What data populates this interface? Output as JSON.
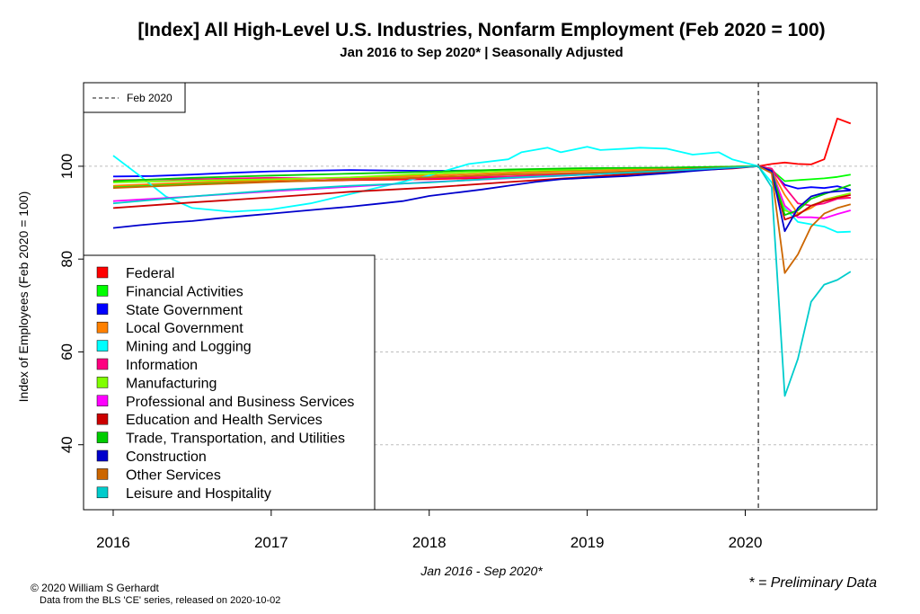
{
  "chart_data": {
    "type": "line",
    "title": "[Index] All High-Level U.S. Industries, Nonfarm Employment (Feb 2020 = 100)",
    "subtitle": "Jan 2016 to Sep 2020*  |  Seasonally Adjusted",
    "xlabel": "Jan 2016 - Sep 2020*",
    "ylabel": "Index of Employees (Feb 2020 = 100)",
    "x_ticks": [
      "2016",
      "2017",
      "2018",
      "2019",
      "2020"
    ],
    "y_ticks": [
      "40",
      "60",
      "80",
      "100"
    ],
    "xlim": [
      2015.8125,
      2020.833
    ],
    "ylim": [
      26,
      118
    ],
    "grid": "horizontal dashed at y ticks",
    "reference_line": {
      "x": 2020.083,
      "label": "Feb 2020"
    },
    "reference_legend_position": "top-left",
    "legend_position": "bottom-left",
    "preliminary_note": "* = Preliminary Data",
    "copyright": "© 2020 William S Gerhardt",
    "source_note": "Data from the BLS 'CE' series, released on 2020-10-02",
    "series": [
      {
        "name": "Federal",
        "color": "#ff0000",
        "points": [
          [
            2016.0,
            95.6
          ],
          [
            2016.5,
            96.2
          ],
          [
            2017.0,
            96.7
          ],
          [
            2017.5,
            97.0
          ],
          [
            2018.0,
            97.2
          ],
          [
            2018.5,
            97.6
          ],
          [
            2019.0,
            98.2
          ],
          [
            2019.5,
            98.9
          ],
          [
            2019.917,
            99.5
          ],
          [
            2020.083,
            100
          ],
          [
            2020.167,
            100.5
          ],
          [
            2020.25,
            100.8
          ],
          [
            2020.333,
            100.5
          ],
          [
            2020.417,
            100.4
          ],
          [
            2020.5,
            101.5
          ],
          [
            2020.583,
            110.3
          ],
          [
            2020.667,
            109.2
          ]
        ]
      },
      {
        "name": "Financial Activities",
        "color": "#00ff00",
        "points": [
          [
            2016.0,
            95.5
          ],
          [
            2016.5,
            96.3
          ],
          [
            2017.0,
            97.0
          ],
          [
            2017.5,
            97.5
          ],
          [
            2018.0,
            98.0
          ],
          [
            2018.5,
            98.6
          ],
          [
            2019.0,
            99.2
          ],
          [
            2019.5,
            99.6
          ],
          [
            2020.083,
            100
          ],
          [
            2020.167,
            99.2
          ],
          [
            2020.25,
            96.8
          ],
          [
            2020.333,
            97.0
          ],
          [
            2020.417,
            97.2
          ],
          [
            2020.5,
            97.4
          ],
          [
            2020.583,
            97.7
          ],
          [
            2020.667,
            98.2
          ]
        ]
      },
      {
        "name": "State Government",
        "color": "#0000ff",
        "points": [
          [
            2016.0,
            97.8
          ],
          [
            2016.25,
            97.9
          ],
          [
            2016.5,
            98.2
          ],
          [
            2016.75,
            98.6
          ],
          [
            2017.0,
            98.9
          ],
          [
            2017.5,
            99.2
          ],
          [
            2018.0,
            99.0
          ],
          [
            2018.5,
            99.2
          ],
          [
            2019.0,
            99.4
          ],
          [
            2019.5,
            99.6
          ],
          [
            2020.083,
            100
          ],
          [
            2020.167,
            99.0
          ],
          [
            2020.25,
            96.0
          ],
          [
            2020.333,
            95.2
          ],
          [
            2020.417,
            95.5
          ],
          [
            2020.5,
            95.3
          ],
          [
            2020.583,
            95.7
          ],
          [
            2020.667,
            94.9
          ]
        ]
      },
      {
        "name": "Local Government",
        "color": "#ff8000",
        "points": [
          [
            2016.0,
            95.8
          ],
          [
            2016.5,
            96.5
          ],
          [
            2017.0,
            97.0
          ],
          [
            2017.5,
            97.5
          ],
          [
            2018.0,
            98.0
          ],
          [
            2018.5,
            98.6
          ],
          [
            2019.0,
            99.0
          ],
          [
            2019.5,
            99.5
          ],
          [
            2020.083,
            100
          ],
          [
            2020.167,
            99.0
          ],
          [
            2020.25,
            93.8
          ],
          [
            2020.333,
            89.8
          ],
          [
            2020.417,
            91.0
          ],
          [
            2020.5,
            92.8
          ],
          [
            2020.583,
            93.5
          ],
          [
            2020.667,
            93.2
          ]
        ]
      },
      {
        "name": "Mining and Logging",
        "color": "#00ffff",
        "points": [
          [
            2016.0,
            102.3
          ],
          [
            2016.167,
            98.0
          ],
          [
            2016.333,
            93.5
          ],
          [
            2016.5,
            91.0
          ],
          [
            2016.75,
            90.2
          ],
          [
            2017.0,
            90.7
          ],
          [
            2017.25,
            92.0
          ],
          [
            2017.5,
            94.0
          ],
          [
            2017.75,
            96.0
          ],
          [
            2018.0,
            98.0
          ],
          [
            2018.25,
            100.5
          ],
          [
            2018.5,
            101.5
          ],
          [
            2018.583,
            103.0
          ],
          [
            2018.75,
            104.0
          ],
          [
            2018.833,
            103.0
          ],
          [
            2019.0,
            104.2
          ],
          [
            2019.083,
            103.5
          ],
          [
            2019.25,
            103.8
          ],
          [
            2019.333,
            104.0
          ],
          [
            2019.5,
            103.8
          ],
          [
            2019.667,
            102.5
          ],
          [
            2019.833,
            103.0
          ],
          [
            2019.917,
            101.5
          ],
          [
            2020.083,
            100
          ],
          [
            2020.167,
            96.5
          ],
          [
            2020.25,
            91.0
          ],
          [
            2020.333,
            88.0
          ],
          [
            2020.417,
            87.5
          ],
          [
            2020.5,
            87.0
          ],
          [
            2020.583,
            85.8
          ],
          [
            2020.667,
            85.9
          ]
        ]
      },
      {
        "name": "Information",
        "color": "#ff0080",
        "points": [
          [
            2016.0,
            97.0
          ],
          [
            2016.5,
            97.2
          ],
          [
            2017.0,
            97.5
          ],
          [
            2017.5,
            97.3
          ],
          [
            2018.0,
            97.4
          ],
          [
            2018.5,
            97.8
          ],
          [
            2019.0,
            98.4
          ],
          [
            2019.5,
            99.0
          ],
          [
            2020.083,
            100
          ],
          [
            2020.167,
            99.5
          ],
          [
            2020.25,
            95.5
          ],
          [
            2020.333,
            92.0
          ],
          [
            2020.417,
            91.5
          ],
          [
            2020.5,
            92.0
          ],
          [
            2020.583,
            93.0
          ],
          [
            2020.667,
            93.2
          ]
        ]
      },
      {
        "name": "Manufacturing",
        "color": "#80ff00",
        "points": [
          [
            2016.0,
            96.5
          ],
          [
            2016.5,
            96.9
          ],
          [
            2017.0,
            97.2
          ],
          [
            2017.5,
            97.6
          ],
          [
            2018.0,
            98.4
          ],
          [
            2018.5,
            99.0
          ],
          [
            2019.0,
            99.4
          ],
          [
            2019.5,
            99.7
          ],
          [
            2020.083,
            100
          ],
          [
            2020.167,
            99.0
          ],
          [
            2020.25,
            90.5
          ],
          [
            2020.333,
            89.5
          ],
          [
            2020.417,
            91.5
          ],
          [
            2020.5,
            92.6
          ],
          [
            2020.583,
            93.5
          ],
          [
            2020.667,
            94.2
          ]
        ]
      },
      {
        "name": "Professional and Business Services",
        "color": "#ff00ff",
        "points": [
          [
            2016.0,
            92.5
          ],
          [
            2016.5,
            93.5
          ],
          [
            2017.0,
            94.6
          ],
          [
            2017.5,
            95.6
          ],
          [
            2018.0,
            96.6
          ],
          [
            2018.5,
            97.4
          ],
          [
            2019.0,
            98.2
          ],
          [
            2019.5,
            99.0
          ],
          [
            2020.083,
            100
          ],
          [
            2020.167,
            99.0
          ],
          [
            2020.25,
            91.5
          ],
          [
            2020.333,
            89.0
          ],
          [
            2020.417,
            89.0
          ],
          [
            2020.5,
            88.8
          ],
          [
            2020.583,
            89.7
          ],
          [
            2020.667,
            90.5
          ]
        ]
      },
      {
        "name": "Education and Health Services",
        "color": "#cc0000",
        "points": [
          [
            2016.0,
            91.0
          ],
          [
            2016.5,
            92.2
          ],
          [
            2017.0,
            93.3
          ],
          [
            2017.5,
            94.5
          ],
          [
            2018.0,
            95.4
          ],
          [
            2018.5,
            96.6
          ],
          [
            2019.0,
            97.7
          ],
          [
            2019.5,
            98.8
          ],
          [
            2020.083,
            100
          ],
          [
            2020.167,
            99.0
          ],
          [
            2020.25,
            88.5
          ],
          [
            2020.333,
            89.5
          ],
          [
            2020.417,
            91.5
          ],
          [
            2020.5,
            92.5
          ],
          [
            2020.583,
            93.2
          ],
          [
            2020.667,
            93.8
          ]
        ]
      },
      {
        "name": "Trade, Transportation, and Utilities",
        "color": "#00cc00",
        "points": [
          [
            2016.0,
            96.8
          ],
          [
            2016.5,
            97.5
          ],
          [
            2017.0,
            98.0
          ],
          [
            2017.5,
            98.4
          ],
          [
            2018.0,
            98.8
          ],
          [
            2018.5,
            99.3
          ],
          [
            2019.0,
            99.6
          ],
          [
            2019.5,
            99.7
          ],
          [
            2020.083,
            100
          ],
          [
            2020.167,
            99.0
          ],
          [
            2020.25,
            89.5
          ],
          [
            2020.333,
            90.5
          ],
          [
            2020.417,
            93.0
          ],
          [
            2020.5,
            94.0
          ],
          [
            2020.583,
            95.0
          ],
          [
            2020.667,
            96.0
          ]
        ]
      },
      {
        "name": "Construction",
        "color": "#0000cc",
        "points": [
          [
            2016.0,
            86.7
          ],
          [
            2016.167,
            87.3
          ],
          [
            2016.333,
            87.8
          ],
          [
            2016.5,
            88.2
          ],
          [
            2016.667,
            88.8
          ],
          [
            2016.833,
            89.3
          ],
          [
            2017.0,
            89.8
          ],
          [
            2017.167,
            90.3
          ],
          [
            2017.333,
            90.8
          ],
          [
            2017.5,
            91.3
          ],
          [
            2017.667,
            91.9
          ],
          [
            2017.833,
            92.5
          ],
          [
            2018.0,
            93.6
          ],
          [
            2018.167,
            94.3
          ],
          [
            2018.333,
            95.0
          ],
          [
            2018.5,
            95.8
          ],
          [
            2018.667,
            96.6
          ],
          [
            2018.833,
            97.2
          ],
          [
            2019.0,
            97.5
          ],
          [
            2019.25,
            97.9
          ],
          [
            2019.5,
            98.5
          ],
          [
            2019.75,
            99.2
          ],
          [
            2020.083,
            100
          ],
          [
            2020.167,
            99.0
          ],
          [
            2020.25,
            86.0
          ],
          [
            2020.333,
            91.0
          ],
          [
            2020.417,
            93.5
          ],
          [
            2020.5,
            94.3
          ],
          [
            2020.583,
            94.6
          ],
          [
            2020.667,
            94.8
          ]
        ]
      },
      {
        "name": "Other Services",
        "color": "#cc6600",
        "points": [
          [
            2016.0,
            95.3
          ],
          [
            2016.5,
            96.0
          ],
          [
            2017.0,
            96.6
          ],
          [
            2017.5,
            97.1
          ],
          [
            2018.0,
            97.6
          ],
          [
            2018.5,
            98.2
          ],
          [
            2019.0,
            98.6
          ],
          [
            2019.5,
            99.2
          ],
          [
            2020.083,
            100
          ],
          [
            2020.167,
            98.5
          ],
          [
            2020.25,
            77.0
          ],
          [
            2020.333,
            81.0
          ],
          [
            2020.417,
            87.0
          ],
          [
            2020.5,
            89.8
          ],
          [
            2020.583,
            91.0
          ],
          [
            2020.667,
            91.8
          ]
        ]
      },
      {
        "name": "Leisure and Hospitality",
        "color": "#00cccc",
        "points": [
          [
            2016.0,
            92.0
          ],
          [
            2016.5,
            93.5
          ],
          [
            2017.0,
            94.8
          ],
          [
            2017.5,
            95.8
          ],
          [
            2018.0,
            96.5
          ],
          [
            2018.5,
            97.5
          ],
          [
            2019.0,
            98.2
          ],
          [
            2019.5,
            99.0
          ],
          [
            2020.083,
            100
          ],
          [
            2020.167,
            95.5
          ],
          [
            2020.25,
            50.5
          ],
          [
            2020.333,
            58.5
          ],
          [
            2020.417,
            70.8
          ],
          [
            2020.5,
            74.5
          ],
          [
            2020.583,
            75.5
          ],
          [
            2020.667,
            77.3
          ]
        ]
      }
    ]
  }
}
